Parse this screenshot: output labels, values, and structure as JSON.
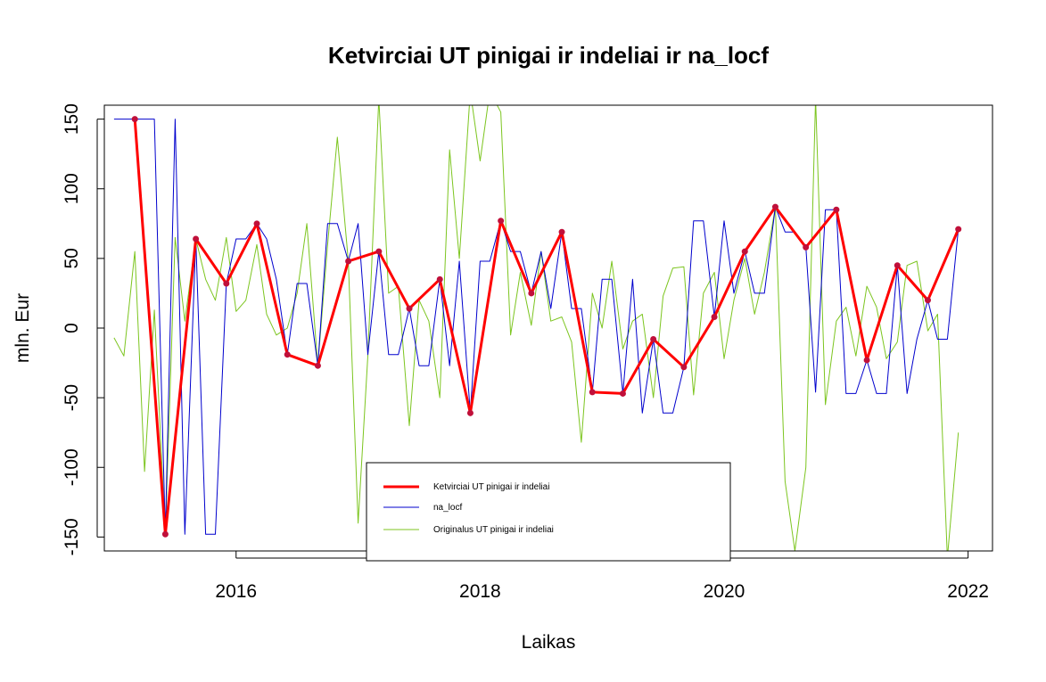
{
  "chart_data": {
    "type": "line",
    "title": "Ketvirciai UT pinigai ir indeliai ir na_locf",
    "xlabel": "Laikas",
    "ylabel": "mln. Eur",
    "xlim": [
      2014.92,
      2022.2
    ],
    "ylim": [
      -160,
      160
    ],
    "x_ticks": [
      2016,
      2018,
      2020,
      2022
    ],
    "y_ticks": [
      -150,
      -100,
      -50,
      0,
      50,
      100,
      150
    ],
    "grid": false,
    "legend_position": "bottom-center",
    "legend": [
      {
        "label": "Ketvirciai UT pinigai ir indeliai",
        "color": "#ff0000",
        "style": "thick line"
      },
      {
        "label": "na_locf",
        "color": "#0000cd",
        "style": "thin line"
      },
      {
        "label": "Originalus UT pinigai ir indeliai",
        "color": "#7cc51f",
        "style": "thin line"
      }
    ],
    "series": [
      {
        "name": "Ketvirciai UT pinigai ir indeliai",
        "color": "#ff0000",
        "marker_color": "#c0103a",
        "points": [
          [
            2015.17,
            150
          ],
          [
            2015.42,
            -148
          ],
          [
            2015.67,
            64
          ],
          [
            2015.92,
            32
          ],
          [
            2016.17,
            75
          ],
          [
            2016.42,
            -19
          ],
          [
            2016.67,
            -27
          ],
          [
            2016.92,
            48
          ],
          [
            2017.17,
            55
          ],
          [
            2017.42,
            14
          ],
          [
            2017.67,
            35
          ],
          [
            2017.92,
            -61
          ],
          [
            2018.17,
            77
          ],
          [
            2018.42,
            25
          ],
          [
            2018.67,
            69
          ],
          [
            2018.92,
            -46
          ],
          [
            2019.17,
            -47
          ],
          [
            2019.42,
            -8
          ],
          [
            2019.67,
            -28
          ],
          [
            2019.92,
            8
          ],
          [
            2020.17,
            55
          ],
          [
            2020.42,
            87
          ],
          [
            2020.67,
            58
          ],
          [
            2020.92,
            85
          ],
          [
            2021.17,
            -23
          ],
          [
            2021.42,
            45
          ],
          [
            2021.67,
            20
          ],
          [
            2021.92,
            71
          ]
        ]
      },
      {
        "name": "na_locf",
        "color": "#0000cd",
        "points": [
          [
            2015.0,
            150
          ],
          [
            2015.08,
            150
          ],
          [
            2015.17,
            150
          ],
          [
            2015.25,
            150
          ],
          [
            2015.33,
            150
          ],
          [
            2015.42,
            -148
          ],
          [
            2015.5,
            150
          ],
          [
            2015.58,
            -148
          ],
          [
            2015.67,
            64
          ],
          [
            2015.75,
            -148
          ],
          [
            2015.83,
            -148
          ],
          [
            2015.92,
            32
          ],
          [
            2016.0,
            64
          ],
          [
            2016.08,
            64
          ],
          [
            2016.17,
            75
          ],
          [
            2016.25,
            64
          ],
          [
            2016.33,
            35
          ],
          [
            2016.42,
            -19
          ],
          [
            2016.5,
            32
          ],
          [
            2016.58,
            32
          ],
          [
            2016.67,
            -27
          ],
          [
            2016.75,
            75
          ],
          [
            2016.83,
            75
          ],
          [
            2016.92,
            48
          ],
          [
            2017.0,
            75
          ],
          [
            2017.08,
            -19
          ],
          [
            2017.17,
            55
          ],
          [
            2017.25,
            -19
          ],
          [
            2017.33,
            -19
          ],
          [
            2017.42,
            14
          ],
          [
            2017.5,
            -27
          ],
          [
            2017.58,
            -27
          ],
          [
            2017.67,
            35
          ],
          [
            2017.75,
            -27
          ],
          [
            2017.83,
            48
          ],
          [
            2017.92,
            -61
          ],
          [
            2018.0,
            48
          ],
          [
            2018.08,
            48
          ],
          [
            2018.17,
            77
          ],
          [
            2018.25,
            55
          ],
          [
            2018.33,
            55
          ],
          [
            2018.42,
            25
          ],
          [
            2018.5,
            55
          ],
          [
            2018.58,
            14
          ],
          [
            2018.67,
            69
          ],
          [
            2018.75,
            14
          ],
          [
            2018.83,
            14
          ],
          [
            2018.92,
            -46
          ],
          [
            2019.0,
            35
          ],
          [
            2019.08,
            35
          ],
          [
            2019.17,
            -47
          ],
          [
            2019.25,
            35
          ],
          [
            2019.33,
            -61
          ],
          [
            2019.42,
            -8
          ],
          [
            2019.5,
            -61
          ],
          [
            2019.58,
            -61
          ],
          [
            2019.67,
            -28
          ],
          [
            2019.75,
            77
          ],
          [
            2019.83,
            77
          ],
          [
            2019.92,
            8
          ],
          [
            2020.0,
            77
          ],
          [
            2020.08,
            25
          ],
          [
            2020.17,
            55
          ],
          [
            2020.25,
            25
          ],
          [
            2020.33,
            25
          ],
          [
            2020.42,
            87
          ],
          [
            2020.5,
            69
          ],
          [
            2020.58,
            69
          ],
          [
            2020.67,
            58
          ],
          [
            2020.75,
            -46
          ],
          [
            2020.83,
            85
          ],
          [
            2020.92,
            85
          ],
          [
            2021.0,
            -47
          ],
          [
            2021.08,
            -47
          ],
          [
            2021.17,
            -23
          ],
          [
            2021.25,
            -47
          ],
          [
            2021.33,
            -47
          ],
          [
            2021.42,
            45
          ],
          [
            2021.5,
            -47
          ],
          [
            2021.58,
            -8
          ],
          [
            2021.67,
            20
          ],
          [
            2021.75,
            -8
          ],
          [
            2021.83,
            -8
          ],
          [
            2021.92,
            71
          ]
        ]
      },
      {
        "name": "Originalus UT pinigai ir indeliai",
        "color": "#7cc51f",
        "points": [
          [
            2015.0,
            -7
          ],
          [
            2015.08,
            -20
          ],
          [
            2015.17,
            55
          ],
          [
            2015.25,
            -103
          ],
          [
            2015.33,
            13
          ],
          [
            2015.42,
            -148
          ],
          [
            2015.5,
            65
          ],
          [
            2015.58,
            5
          ],
          [
            2015.67,
            64
          ],
          [
            2015.75,
            35
          ],
          [
            2015.83,
            20
          ],
          [
            2015.92,
            65
          ],
          [
            2016.0,
            12
          ],
          [
            2016.08,
            20
          ],
          [
            2016.17,
            60
          ],
          [
            2016.25,
            10
          ],
          [
            2016.33,
            -5
          ],
          [
            2016.42,
            0
          ],
          [
            2016.5,
            25
          ],
          [
            2016.58,
            75
          ],
          [
            2016.67,
            -27
          ],
          [
            2016.75,
            60
          ],
          [
            2016.83,
            137
          ],
          [
            2016.92,
            48
          ],
          [
            2017.0,
            -140
          ],
          [
            2017.08,
            -20
          ],
          [
            2017.17,
            165
          ],
          [
            2017.25,
            25
          ],
          [
            2017.33,
            30
          ],
          [
            2017.42,
            -70
          ],
          [
            2017.5,
            20
          ],
          [
            2017.58,
            5
          ],
          [
            2017.67,
            -50
          ],
          [
            2017.75,
            128
          ],
          [
            2017.83,
            50
          ],
          [
            2017.92,
            170
          ],
          [
            2018.0,
            120
          ],
          [
            2018.08,
            170
          ],
          [
            2018.17,
            155
          ],
          [
            2018.25,
            -5
          ],
          [
            2018.33,
            40
          ],
          [
            2018.42,
            2
          ],
          [
            2018.5,
            55
          ],
          [
            2018.58,
            5
          ],
          [
            2018.67,
            8
          ],
          [
            2018.75,
            -10
          ],
          [
            2018.83,
            -82
          ],
          [
            2018.92,
            25
          ],
          [
            2019.0,
            0
          ],
          [
            2019.08,
            48
          ],
          [
            2019.17,
            -15
          ],
          [
            2019.25,
            5
          ],
          [
            2019.33,
            10
          ],
          [
            2019.42,
            -50
          ],
          [
            2019.5,
            23
          ],
          [
            2019.58,
            43
          ],
          [
            2019.67,
            44
          ],
          [
            2019.75,
            -48
          ],
          [
            2019.83,
            25
          ],
          [
            2019.92,
            40
          ],
          [
            2020.0,
            -22
          ],
          [
            2020.08,
            20
          ],
          [
            2020.17,
            50
          ],
          [
            2020.25,
            10
          ],
          [
            2020.33,
            40
          ],
          [
            2020.42,
            87
          ],
          [
            2020.5,
            -110
          ],
          [
            2020.58,
            -160
          ],
          [
            2020.67,
            -100
          ],
          [
            2020.75,
            165
          ],
          [
            2020.83,
            -55
          ],
          [
            2020.92,
            5
          ],
          [
            2021.0,
            15
          ],
          [
            2021.08,
            -20
          ],
          [
            2021.17,
            30
          ],
          [
            2021.25,
            15
          ],
          [
            2021.33,
            -22
          ],
          [
            2021.42,
            -10
          ],
          [
            2021.5,
            45
          ],
          [
            2021.58,
            48
          ],
          [
            2021.67,
            -2
          ],
          [
            2021.75,
            10
          ],
          [
            2021.83,
            -165
          ],
          [
            2021.92,
            -75
          ]
        ]
      }
    ]
  }
}
